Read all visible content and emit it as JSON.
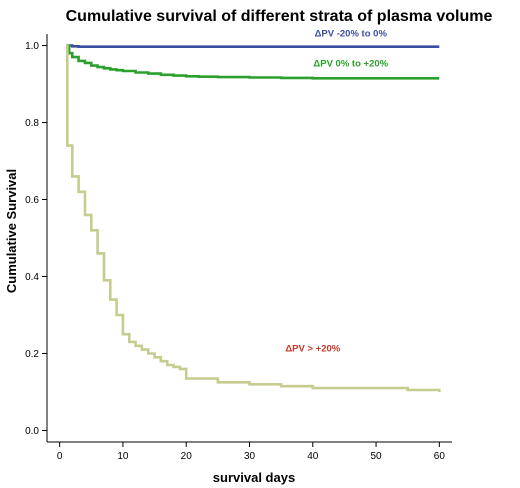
{
  "chart_data": {
    "type": "line",
    "title": "Cumulative survival of different strata of plasma volume",
    "xlabel": "survival days",
    "ylabel": "Cumulative Survival",
    "xlim": [
      -2,
      62
    ],
    "ylim": [
      -0.03,
      1.03
    ],
    "x_ticks": [
      0,
      10,
      20,
      30,
      40,
      50,
      60
    ],
    "y_ticks": [
      0.0,
      0.2,
      0.4,
      0.6,
      0.8,
      1.0
    ],
    "y_tick_labels": [
      "0.0",
      "0.2",
      "0.4",
      "0.6",
      "0.8",
      "1.0"
    ],
    "grid": false,
    "legend": "none",
    "step": true,
    "series": [
      {
        "name": "ΔPV -20% to 0%",
        "color": "#3a4fa0",
        "x": [
          1,
          2,
          3,
          60
        ],
        "y": [
          1.0,
          0.998,
          0.997,
          0.997
        ]
      },
      {
        "name": "ΔPV 0% to +20%",
        "color": "#2ca02c",
        "x": [
          1,
          1.5,
          2,
          3,
          4,
          5,
          6,
          7,
          8,
          9,
          10,
          12,
          14,
          16,
          18,
          20,
          22,
          25,
          30,
          35,
          40,
          50,
          60
        ],
        "y": [
          1.0,
          0.98,
          0.97,
          0.96,
          0.955,
          0.948,
          0.944,
          0.941,
          0.938,
          0.936,
          0.934,
          0.93,
          0.927,
          0.924,
          0.922,
          0.92,
          0.919,
          0.918,
          0.917,
          0.916,
          0.915,
          0.915,
          0.915
        ]
      },
      {
        "name": "ΔPV > +20%",
        "color": "#c6cc8e",
        "x": [
          1,
          1.2,
          2,
          3,
          4,
          5,
          6,
          7,
          8,
          9,
          10,
          11,
          12,
          13,
          14,
          15,
          16,
          17,
          18,
          19,
          20,
          25,
          30,
          35,
          40,
          45,
          50,
          55,
          60
        ],
        "y": [
          1.0,
          0.74,
          0.66,
          0.62,
          0.56,
          0.52,
          0.46,
          0.39,
          0.34,
          0.3,
          0.25,
          0.23,
          0.22,
          0.21,
          0.2,
          0.19,
          0.18,
          0.17,
          0.165,
          0.16,
          0.135,
          0.125,
          0.12,
          0.115,
          0.11,
          0.11,
          0.11,
          0.105,
          0.1
        ]
      }
    ],
    "annotations": [
      {
        "text": "ΔPV -20% to 0%",
        "color": "#3a4fa0",
        "x": 46,
        "y": 1.023
      },
      {
        "text": "ΔPV 0% to +20%",
        "color": "#2ca02c",
        "x": 46,
        "y": 0.945
      },
      {
        "text": "ΔPV > +20%",
        "color": "#c0392b",
        "x": 40,
        "y": 0.205
      }
    ]
  }
}
